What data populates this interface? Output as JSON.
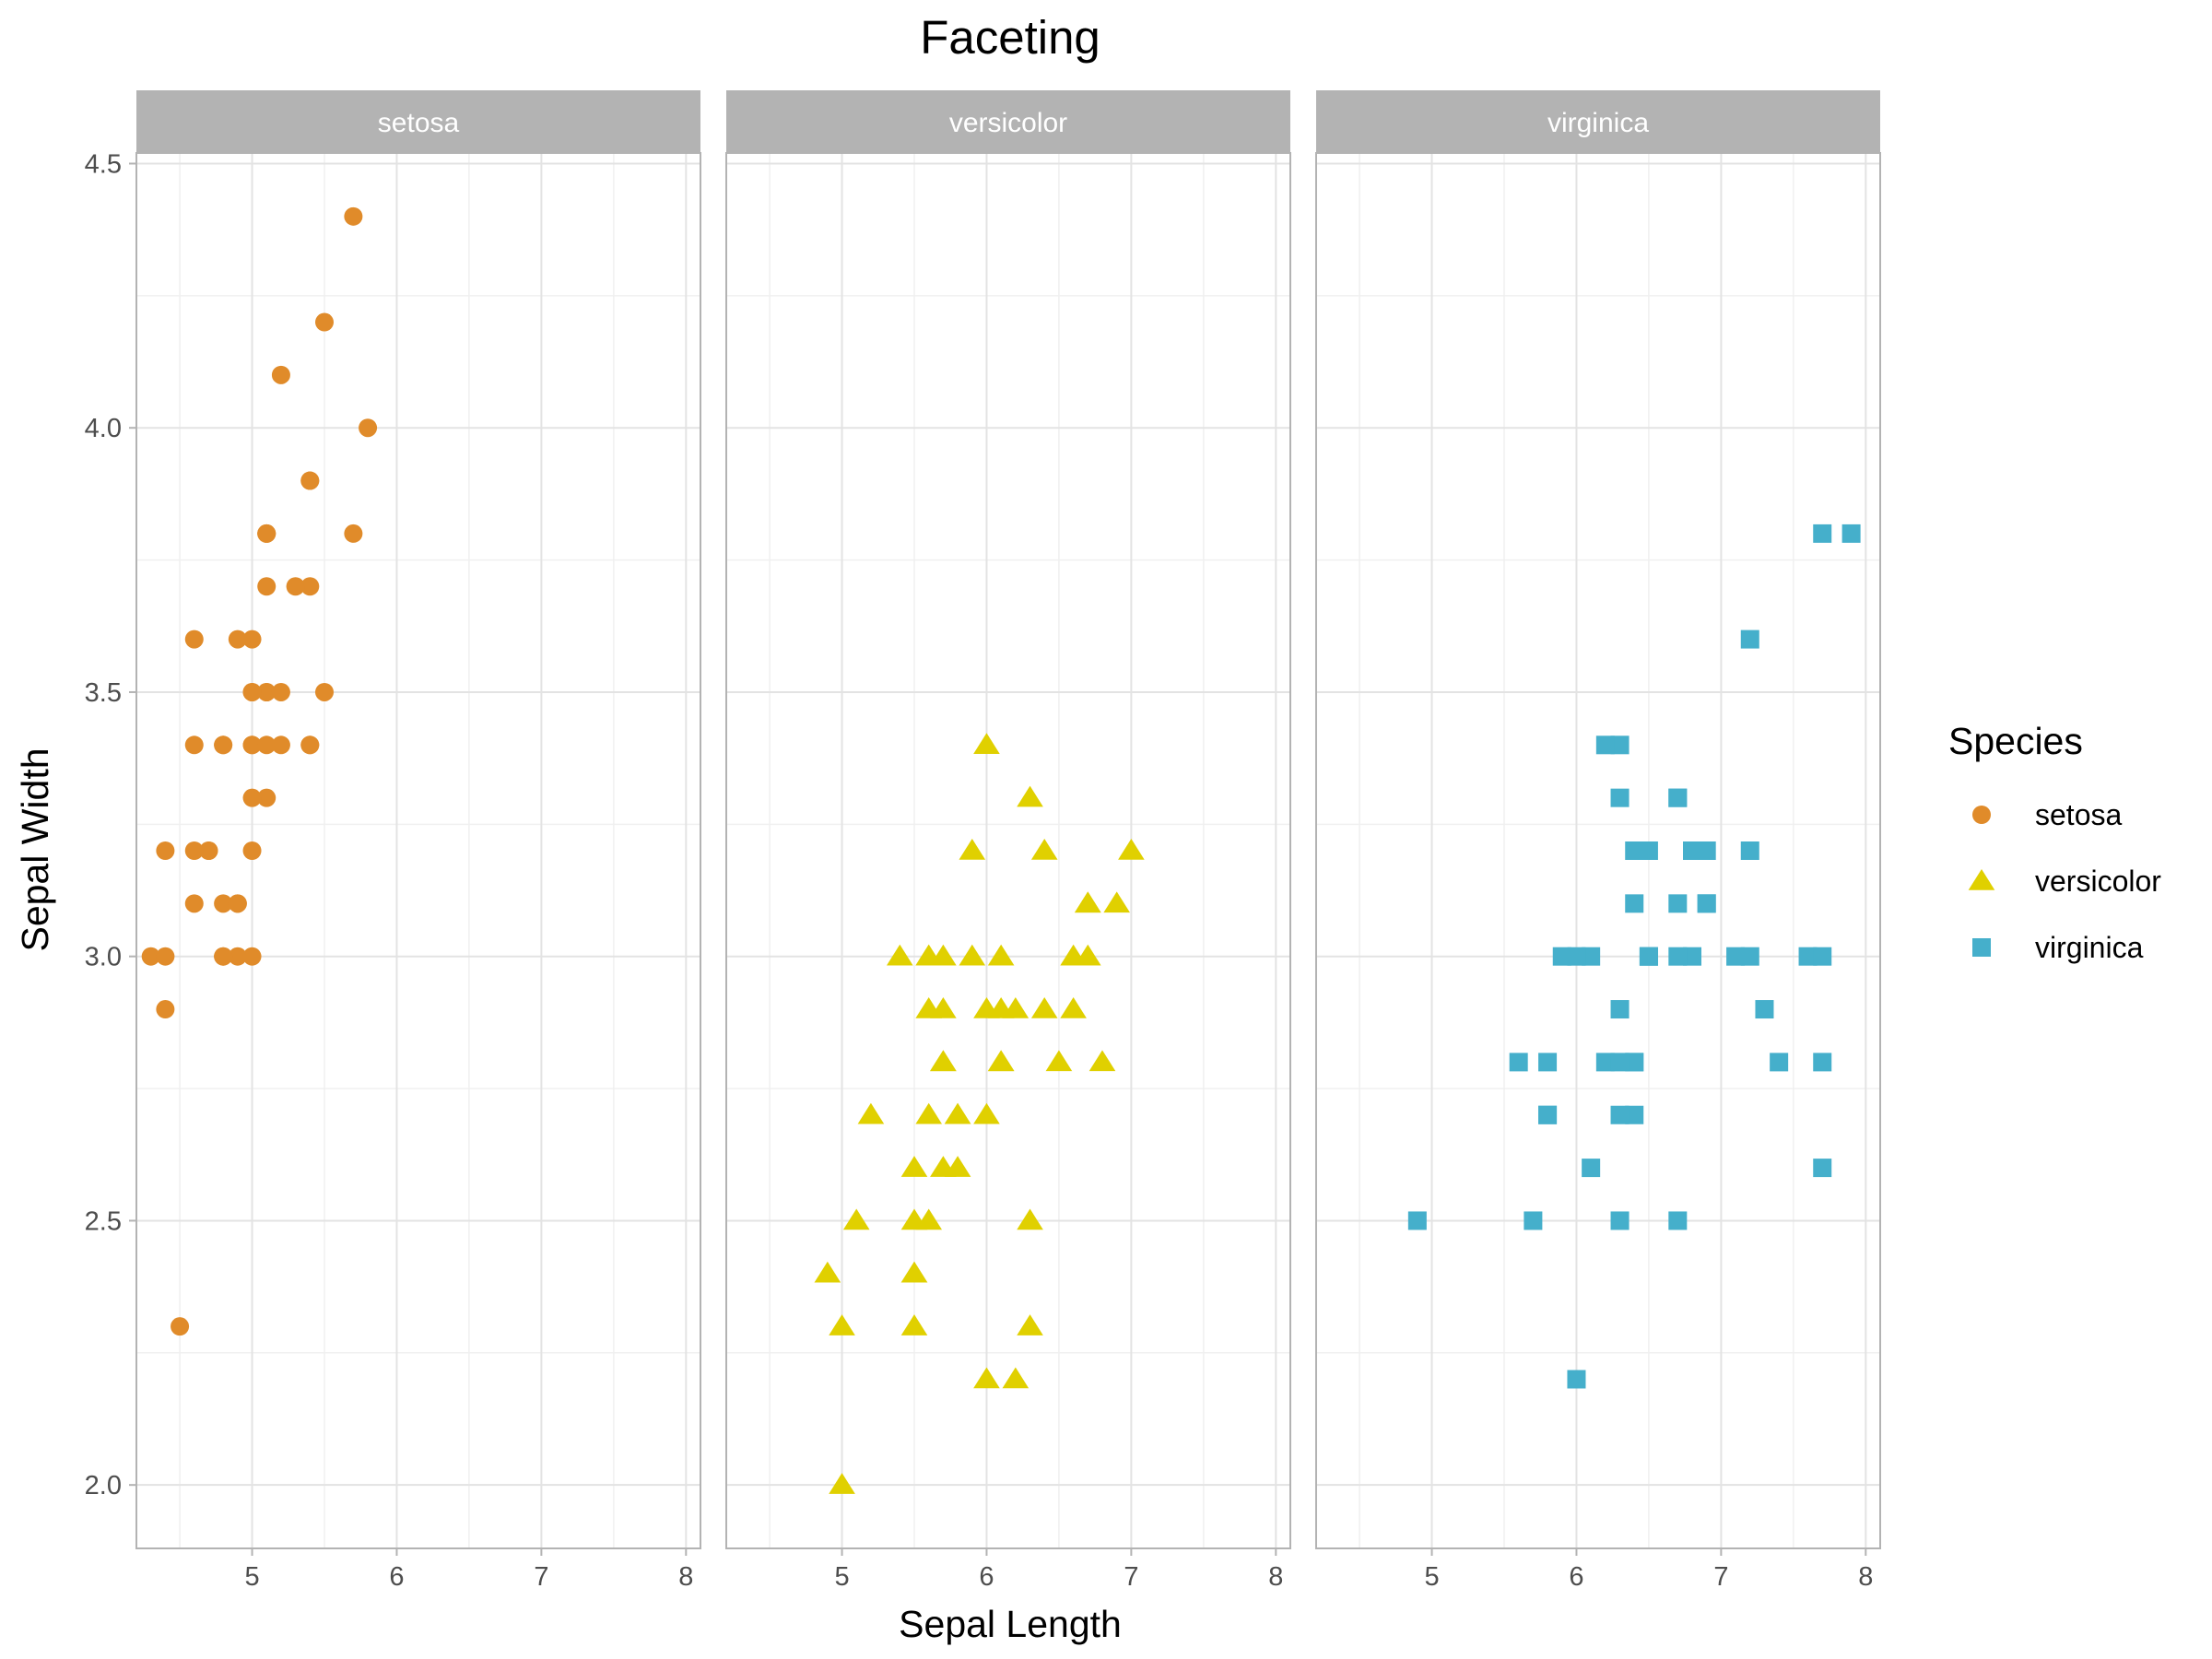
{
  "chart_data": {
    "type": "scatter",
    "title": "Faceting",
    "xlabel": "Sepal Length",
    "ylabel": "Sepal Width",
    "xlim": [
      4.2,
      8.1
    ],
    "ylim": [
      1.88,
      4.52
    ],
    "x_ticks": [
      5,
      6,
      7,
      8
    ],
    "x_tick_labels": [
      "5",
      "6",
      "7",
      "8"
    ],
    "y_ticks": [
      2.0,
      2.5,
      3.0,
      3.5,
      4.0,
      4.5
    ],
    "y_tick_labels": [
      "2.0",
      "2.5",
      "3.0",
      "3.5",
      "4.0",
      "4.5"
    ],
    "grid": true,
    "legend": {
      "title": "Species",
      "position": "right",
      "entries": [
        "setosa",
        "versicolor",
        "virginica"
      ]
    },
    "facets": [
      {
        "name": "setosa",
        "color": "#E08B2A",
        "shape": "circle",
        "points": [
          [
            5.1,
            3.5
          ],
          [
            4.9,
            3.0
          ],
          [
            4.7,
            3.2
          ],
          [
            4.6,
            3.1
          ],
          [
            5.0,
            3.6
          ],
          [
            5.4,
            3.9
          ],
          [
            4.6,
            3.4
          ],
          [
            5.0,
            3.4
          ],
          [
            4.4,
            2.9
          ],
          [
            4.9,
            3.1
          ],
          [
            5.4,
            3.7
          ],
          [
            4.8,
            3.4
          ],
          [
            4.8,
            3.0
          ],
          [
            4.3,
            3.0
          ],
          [
            5.8,
            4.0
          ],
          [
            5.7,
            4.4
          ],
          [
            5.4,
            3.9
          ],
          [
            5.1,
            3.5
          ],
          [
            5.7,
            3.8
          ],
          [
            5.1,
            3.8
          ],
          [
            5.4,
            3.4
          ],
          [
            5.1,
            3.7
          ],
          [
            4.6,
            3.6
          ],
          [
            5.1,
            3.3
          ],
          [
            4.8,
            3.4
          ],
          [
            5.0,
            3.0
          ],
          [
            5.0,
            3.4
          ],
          [
            5.2,
            3.5
          ],
          [
            5.2,
            3.4
          ],
          [
            4.7,
            3.2
          ],
          [
            4.8,
            3.1
          ],
          [
            5.4,
            3.4
          ],
          [
            5.2,
            4.1
          ],
          [
            5.5,
            4.2
          ],
          [
            4.9,
            3.1
          ],
          [
            5.0,
            3.2
          ],
          [
            5.5,
            3.5
          ],
          [
            4.9,
            3.6
          ],
          [
            4.4,
            3.0
          ],
          [
            5.1,
            3.4
          ],
          [
            5.0,
            3.5
          ],
          [
            4.5,
            2.3
          ],
          [
            4.4,
            3.2
          ],
          [
            5.0,
            3.5
          ],
          [
            5.1,
            3.8
          ],
          [
            4.8,
            3.0
          ],
          [
            5.1,
            3.8
          ],
          [
            4.6,
            3.2
          ],
          [
            5.3,
            3.7
          ],
          [
            5.0,
            3.3
          ]
        ]
      },
      {
        "name": "versicolor",
        "color": "#E0D000",
        "shape": "triangle",
        "points": [
          [
            7.0,
            3.2
          ],
          [
            6.4,
            3.2
          ],
          [
            6.9,
            3.1
          ],
          [
            5.5,
            2.3
          ],
          [
            6.5,
            2.8
          ],
          [
            5.7,
            2.8
          ],
          [
            6.3,
            3.3
          ],
          [
            4.9,
            2.4
          ],
          [
            6.6,
            2.9
          ],
          [
            5.2,
            2.7
          ],
          [
            5.0,
            2.0
          ],
          [
            5.9,
            3.0
          ],
          [
            6.0,
            2.2
          ],
          [
            6.1,
            2.9
          ],
          [
            5.6,
            2.9
          ],
          [
            6.7,
            3.1
          ],
          [
            5.6,
            3.0
          ],
          [
            5.8,
            2.7
          ],
          [
            6.2,
            2.2
          ],
          [
            5.6,
            2.5
          ],
          [
            5.9,
            3.2
          ],
          [
            6.1,
            2.8
          ],
          [
            6.3,
            2.5
          ],
          [
            6.1,
            2.8
          ],
          [
            6.4,
            2.9
          ],
          [
            6.6,
            3.0
          ],
          [
            6.8,
            2.8
          ],
          [
            6.7,
            3.0
          ],
          [
            6.0,
            2.9
          ],
          [
            5.7,
            2.6
          ],
          [
            5.5,
            2.4
          ],
          [
            5.5,
            2.4
          ],
          [
            5.8,
            2.7
          ],
          [
            6.0,
            2.7
          ],
          [
            5.4,
            3.0
          ],
          [
            6.0,
            3.4
          ],
          [
            6.7,
            3.1
          ],
          [
            6.3,
            2.3
          ],
          [
            5.6,
            3.0
          ],
          [
            5.5,
            2.5
          ],
          [
            5.5,
            2.6
          ],
          [
            6.1,
            3.0
          ],
          [
            5.8,
            2.6
          ],
          [
            5.0,
            2.3
          ],
          [
            5.6,
            2.7
          ],
          [
            5.7,
            3.0
          ],
          [
            5.7,
            2.9
          ],
          [
            6.2,
            2.9
          ],
          [
            5.1,
            2.5
          ],
          [
            5.7,
            2.8
          ]
        ]
      },
      {
        "name": "virginica",
        "color": "#45AFCB",
        "shape": "square",
        "points": [
          [
            6.3,
            3.3
          ],
          [
            5.8,
            2.7
          ],
          [
            7.1,
            3.0
          ],
          [
            6.3,
            2.9
          ],
          [
            6.5,
            3.0
          ],
          [
            7.6,
            3.0
          ],
          [
            4.9,
            2.5
          ],
          [
            7.3,
            2.9
          ],
          [
            6.7,
            2.5
          ],
          [
            7.2,
            3.6
          ],
          [
            6.5,
            3.2
          ],
          [
            6.4,
            2.7
          ],
          [
            6.8,
            3.0
          ],
          [
            5.7,
            2.5
          ],
          [
            5.8,
            2.8
          ],
          [
            6.4,
            3.2
          ],
          [
            6.5,
            3.0
          ],
          [
            7.7,
            3.8
          ],
          [
            7.7,
            2.6
          ],
          [
            6.0,
            2.2
          ],
          [
            6.9,
            3.2
          ],
          [
            5.6,
            2.8
          ],
          [
            7.7,
            2.8
          ],
          [
            6.3,
            2.7
          ],
          [
            6.7,
            3.3
          ],
          [
            7.2,
            3.2
          ],
          [
            6.2,
            2.8
          ],
          [
            6.1,
            3.0
          ],
          [
            6.4,
            2.8
          ],
          [
            7.2,
            3.0
          ],
          [
            7.4,
            2.8
          ],
          [
            7.9,
            3.8
          ],
          [
            6.4,
            2.8
          ],
          [
            6.3,
            2.8
          ],
          [
            6.1,
            2.6
          ],
          [
            7.7,
            3.0
          ],
          [
            6.3,
            3.4
          ],
          [
            6.4,
            3.1
          ],
          [
            6.0,
            3.0
          ],
          [
            6.9,
            3.1
          ],
          [
            6.7,
            3.1
          ],
          [
            6.9,
            3.1
          ],
          [
            5.8,
            2.7
          ],
          [
            6.8,
            3.2
          ],
          [
            6.7,
            3.3
          ],
          [
            6.7,
            3.0
          ],
          [
            6.3,
            2.5
          ],
          [
            6.5,
            3.0
          ],
          [
            6.2,
            3.4
          ],
          [
            5.9,
            3.0
          ]
        ]
      }
    ]
  }
}
